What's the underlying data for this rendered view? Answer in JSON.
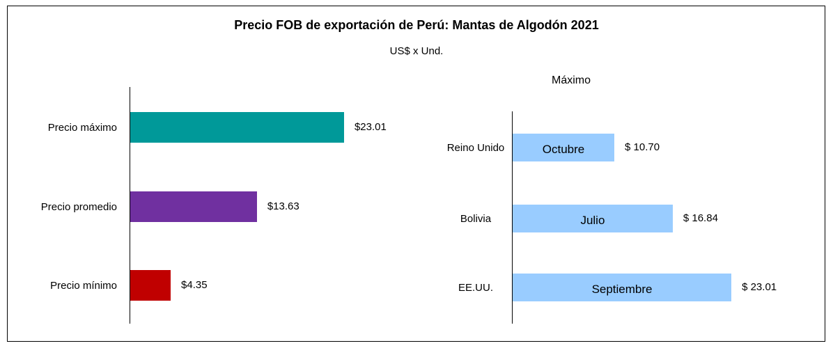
{
  "title": "Precio FOB de exportación de Perú: Mantas de Algodón 2021",
  "subtitle": "US$ x Und.",
  "chart_data": [
    {
      "type": "bar",
      "orientation": "horizontal",
      "categories": [
        "Precio máximo",
        "Precio promedio",
        "Precio mínimo"
      ],
      "values": [
        23.01,
        13.63,
        4.35
      ],
      "value_labels": [
        "$23.01",
        "$13.63",
        "$4.35"
      ],
      "colors": [
        "#009999",
        "#7030a0",
        "#c00000"
      ]
    },
    {
      "type": "bar",
      "orientation": "horizontal",
      "title": "Máximo",
      "categories": [
        "Reino Unido",
        "Bolivia",
        "EE.UU."
      ],
      "values": [
        10.7,
        16.84,
        23.01
      ],
      "value_labels": [
        "$ 10.70",
        "$ 16.84",
        "$ 23.01"
      ],
      "bar_labels": [
        "Octubre",
        "Julio",
        "Septiembre"
      ],
      "color": "#99ccff"
    }
  ]
}
